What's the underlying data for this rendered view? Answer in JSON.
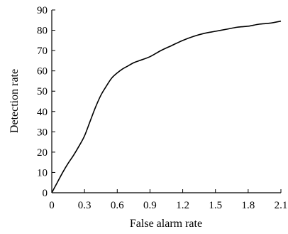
{
  "chart_data": {
    "type": "line",
    "title": "",
    "xlabel": "False alarm rate",
    "ylabel": "Detection rate",
    "xlim": [
      0,
      2.1
    ],
    "ylim": [
      0,
      90
    ],
    "xticks": [
      0,
      0.3,
      0.6,
      0.9,
      1.2,
      1.5,
      1.8,
      2.1
    ],
    "xtick_labels": [
      "0",
      "0.3",
      "0.6",
      "0.9",
      "1.2",
      "1.5",
      "1.8",
      "2.1"
    ],
    "yticks": [
      0,
      10,
      20,
      30,
      40,
      50,
      60,
      70,
      80,
      90
    ],
    "ytick_labels": [
      "0",
      "10",
      "20",
      "30",
      "40",
      "50",
      "60",
      "70",
      "80",
      "90"
    ],
    "grid": false,
    "legend": "none",
    "series": [
      {
        "color": "#000000",
        "x": [
          0,
          0.05,
          0.1,
          0.15,
          0.2,
          0.25,
          0.3,
          0.35,
          0.4,
          0.45,
          0.5,
          0.55,
          0.6,
          0.65,
          0.7,
          0.75,
          0.8,
          0.9,
          1.0,
          1.1,
          1.2,
          1.3,
          1.4,
          1.5,
          1.6,
          1.7,
          1.8,
          1.9,
          2.0,
          2.1
        ],
        "y": [
          0,
          5,
          10,
          14.5,
          18.5,
          23,
          28,
          35,
          42,
          48,
          52.5,
          56.5,
          59,
          61,
          62.5,
          64,
          65,
          67,
          70,
          72.5,
          75,
          77,
          78.5,
          79.5,
          80.5,
          81.5,
          82,
          83,
          83.5,
          84.5
        ]
      }
    ]
  }
}
